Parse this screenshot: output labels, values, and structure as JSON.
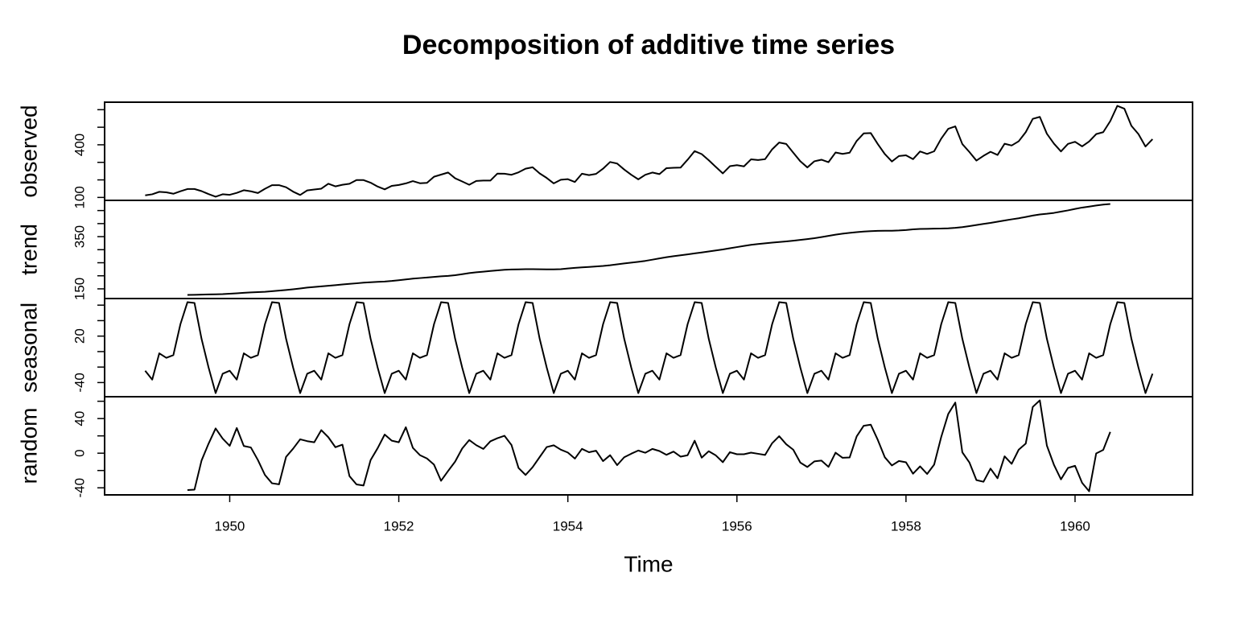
{
  "chart_data": {
    "type": "line",
    "title": "Decomposition of additive time series",
    "xlabel": "Time",
    "x": [
      1949,
      1949.0833,
      1949.1667,
      1949.25,
      1949.3333,
      1949.4167,
      1949.5,
      1949.5833,
      1949.6667,
      1949.75,
      1949.8333,
      1949.9167,
      1950,
      1950.0833,
      1950.1667,
      1950.25,
      1950.3333,
      1950.4167,
      1950.5,
      1950.5833,
      1950.6667,
      1950.75,
      1950.8333,
      1950.9167,
      1951,
      1951.0833,
      1951.1667,
      1951.25,
      1951.3333,
      1951.4167,
      1951.5,
      1951.5833,
      1951.6667,
      1951.75,
      1951.8333,
      1951.9167,
      1952,
      1952.0833,
      1952.1667,
      1952.25,
      1952.3333,
      1952.4167,
      1952.5,
      1952.5833,
      1952.6667,
      1952.75,
      1952.8333,
      1952.9167,
      1953,
      1953.0833,
      1953.1667,
      1953.25,
      1953.3333,
      1953.4167,
      1953.5,
      1953.5833,
      1953.6667,
      1953.75,
      1953.8333,
      1953.9167,
      1954,
      1954.0833,
      1954.1667,
      1954.25,
      1954.3333,
      1954.4167,
      1954.5,
      1954.5833,
      1954.6667,
      1954.75,
      1954.8333,
      1954.9167,
      1955,
      1955.0833,
      1955.1667,
      1955.25,
      1955.3333,
      1955.4167,
      1955.5,
      1955.5833,
      1955.6667,
      1955.75,
      1955.8333,
      1955.9167,
      1956,
      1956.0833,
      1956.1667,
      1956.25,
      1956.3333,
      1956.4167,
      1956.5,
      1956.5833,
      1956.6667,
      1956.75,
      1956.8333,
      1956.9167,
      1957,
      1957.0833,
      1957.1667,
      1957.25,
      1957.3333,
      1957.4167,
      1957.5,
      1957.5833,
      1957.6667,
      1957.75,
      1957.8333,
      1957.9167,
      1958,
      1958.0833,
      1958.1667,
      1958.25,
      1958.3333,
      1958.4167,
      1958.5,
      1958.5833,
      1958.6667,
      1958.75,
      1958.8333,
      1958.9167,
      1959,
      1959.0833,
      1959.1667,
      1959.25,
      1959.3333,
      1959.4167,
      1959.5,
      1959.5833,
      1959.6667,
      1959.75,
      1959.8333,
      1959.9167,
      1960,
      1960.0833,
      1960.1667,
      1960.25,
      1960.3333,
      1960.4167,
      1960.5,
      1960.5833,
      1960.6667,
      1960.75,
      1960.8333,
      1960.9167
    ],
    "xlim": [
      1948.52,
      1961.39
    ],
    "xticks": [
      1950,
      1952,
      1954,
      1956,
      1958,
      1960
    ],
    "color": "#000000",
    "series": [
      {
        "name": "observed",
        "ylim": [
          83.28,
          642.72
        ],
        "yticks": [
          100,
          400
        ],
        "yminor_ticks": [
          200,
          300,
          500,
          600
        ],
        "values": [
          112,
          118,
          132,
          129,
          121,
          135,
          148,
          148,
          136,
          119,
          104,
          118,
          115,
          126,
          141,
          135,
          125,
          149,
          170,
          170,
          158,
          133,
          114,
          140,
          145,
          150,
          178,
          163,
          172,
          178,
          199,
          199,
          184,
          162,
          146,
          166,
          171,
          180,
          193,
          181,
          183,
          218,
          230,
          242,
          209,
          191,
          172,
          194,
          196,
          196,
          236,
          235,
          229,
          243,
          264,
          272,
          237,
          211,
          180,
          201,
          204,
          188,
          235,
          227,
          234,
          264,
          302,
          293,
          259,
          229,
          203,
          229,
          242,
          233,
          267,
          269,
          270,
          315,
          364,
          347,
          312,
          274,
          237,
          278,
          284,
          277,
          317,
          313,
          318,
          374,
          413,
          405,
          355,
          306,
          271,
          306,
          315,
          301,
          356,
          348,
          355,
          422,
          465,
          467,
          404,
          347,
          305,
          336,
          340,
          318,
          362,
          348,
          363,
          435,
          491,
          505,
          404,
          359,
          310,
          337,
          360,
          342,
          406,
          396,
          420,
          472,
          548,
          559,
          463,
          407,
          362,
          405,
          417,
          391,
          419,
          461,
          472,
          535,
          622,
          606,
          508,
          461,
          390,
          432
        ]
      },
      {
        "name": "trend",
        "ylim": [
          112.86,
          488.97
        ],
        "yticks": [
          150,
          350
        ],
        "yminor_ticks": [
          200,
          250,
          300,
          400,
          450
        ],
        "values": [
          null,
          null,
          null,
          null,
          null,
          null,
          126.79,
          127.25,
          127.96,
          128.58,
          129.0,
          129.75,
          131.25,
          133.08,
          134.92,
          136.42,
          137.42,
          138.75,
          140.92,
          143.17,
          145.71,
          148.42,
          151.54,
          154.71,
          157.13,
          159.54,
          161.83,
          164.13,
          166.67,
          169.08,
          171.25,
          173.58,
          175.46,
          176.83,
          178.04,
          180.17,
          183.13,
          186.21,
          189.04,
          191.29,
          193.58,
          195.83,
          198.04,
          199.75,
          202.21,
          206.25,
          210.42,
          213.38,
          215.83,
          218.5,
          220.92,
          222.92,
          224.08,
          224.71,
          225.33,
          225.33,
          224.96,
          224.58,
          224.46,
          225.54,
          228.0,
          230.46,
          232.25,
          233.92,
          235.63,
          237.75,
          240.5,
          243.96,
          247.17,
          250.25,
          253.5,
          257.13,
          261.83,
          266.67,
          271.13,
          275.21,
          278.5,
          281.96,
          285.75,
          289.33,
          293.25,
          297.17,
          301.0,
          305.46,
          309.96,
          314.42,
          318.63,
          321.75,
          324.5,
          327.08,
          329.54,
          331.83,
          334.46,
          337.54,
          340.54,
          344.08,
          348.25,
          353.0,
          357.63,
          361.38,
          364.5,
          367.17,
          369.46,
          371.21,
          372.17,
          372.42,
          372.75,
          373.63,
          375.25,
          377.92,
          379.5,
          380.0,
          380.71,
          380.96,
          381.83,
          383.67,
          386.5,
          390.33,
          394.71,
          398.63,
          402.54,
          407.17,
          411.88,
          416.33,
          420.5,
          425.5,
          430.71,
          435.13,
          437.71,
          440.96,
          445.83,
          450.63,
          456.33,
          461.38,
          465.21,
          469.33,
          472.75,
          475.04,
          null,
          null,
          null,
          null,
          null,
          null
        ]
      },
      {
        "name": "seasonal",
        "ylim": [
          -58.29,
          68.53
        ],
        "yticks": [
          -40,
          20
        ],
        "yminor_ticks": [
          -20,
          0,
          40,
          60
        ],
        "values": [
          -24.75,
          -36.19,
          -2.24,
          -8.04,
          -4.51,
          35.4,
          63.83,
          62.82,
          16.52,
          -20.64,
          -53.59,
          -28.62,
          -24.75,
          -36.19,
          -2.24,
          -8.04,
          -4.51,
          35.4,
          63.83,
          62.82,
          16.52,
          -20.64,
          -53.59,
          -28.62,
          -24.75,
          -36.19,
          -2.24,
          -8.04,
          -4.51,
          35.4,
          63.83,
          62.82,
          16.52,
          -20.64,
          -53.59,
          -28.62,
          -24.75,
          -36.19,
          -2.24,
          -8.04,
          -4.51,
          35.4,
          63.83,
          62.82,
          16.52,
          -20.64,
          -53.59,
          -28.62,
          -24.75,
          -36.19,
          -2.24,
          -8.04,
          -4.51,
          35.4,
          63.83,
          62.82,
          16.52,
          -20.64,
          -53.59,
          -28.62,
          -24.75,
          -36.19,
          -2.24,
          -8.04,
          -4.51,
          35.4,
          63.83,
          62.82,
          16.52,
          -20.64,
          -53.59,
          -28.62,
          -24.75,
          -36.19,
          -2.24,
          -8.04,
          -4.51,
          35.4,
          63.83,
          62.82,
          16.52,
          -20.64,
          -53.59,
          -28.62,
          -24.75,
          -36.19,
          -2.24,
          -8.04,
          -4.51,
          35.4,
          63.83,
          62.82,
          16.52,
          -20.64,
          -53.59,
          -28.62,
          -24.75,
          -36.19,
          -2.24,
          -8.04,
          -4.51,
          35.4,
          63.83,
          62.82,
          16.52,
          -20.64,
          -53.59,
          -28.62,
          -24.75,
          -36.19,
          -2.24,
          -8.04,
          -4.51,
          35.4,
          63.83,
          62.82,
          16.52,
          -20.64,
          -53.59,
          -28.62,
          -24.75,
          -36.19,
          -2.24,
          -8.04,
          -4.51,
          35.4,
          63.83,
          62.82,
          16.52,
          -20.64,
          -53.59,
          -28.62,
          -24.75,
          -36.19,
          -2.24,
          -8.04,
          -4.51,
          35.4,
          63.83,
          62.82,
          16.52,
          -20.64,
          -53.59,
          -28.62
        ]
      },
      {
        "name": "random",
        "ylim": [
          -48.17,
          65.25
        ],
        "yticks": [
          -40,
          0,
          40
        ],
        "yminor_ticks": [
          -20,
          20,
          60
        ],
        "values": [
          null,
          null,
          null,
          null,
          null,
          null,
          -42.62,
          -42.07,
          -8.48,
          11.06,
          28.59,
          16.87,
          8.5,
          29.11,
          8.32,
          6.62,
          -7.91,
          -25.15,
          -34.75,
          -35.99,
          -4.23,
          5.22,
          16.05,
          13.91,
          12.62,
          26.65,
          18.41,
          6.91,
          9.84,
          -26.48,
          -36.08,
          -37.4,
          -7.98,
          5.81,
          21.55,
          14.45,
          12.62,
          29.98,
          6.2,
          -2.25,
          -6.07,
          -13.23,
          -31.87,
          -20.57,
          -9.73,
          5.39,
          15.17,
          9.24,
          4.92,
          13.69,
          17.32,
          20.12,
          9.43,
          -17.11,
          -25.16,
          -16.15,
          -4.48,
          7.06,
          9.13,
          4.08,
          0.75,
          -6.27,
          4.99,
          1.12,
          2.88,
          -9.15,
          -2.33,
          -13.78,
          -4.69,
          -0.61,
          3.09,
          0.49,
          4.92,
          2.52,
          -1.89,
          1.83,
          -3.99,
          -2.36,
          14.42,
          -5.15,
          2.23,
          -2.53,
          -10.41,
          1.16,
          -1.21,
          -1.23,
          0.61,
          -0.71,
          -1.99,
          11.52,
          19.63,
          10.35,
          4.02,
          -10.9,
          -15.95,
          -9.46,
          -8.5,
          -15.81,
          0.61,
          -5.34,
          -4.99,
          19.43,
          31.71,
          32.97,
          15.31,
          -4.78,
          -14.16,
          -9.01,
          -10.5,
          -23.73,
          -15.26,
          -23.96,
          -13.2,
          18.64,
          45.34,
          58.51,
          0.98,
          -10.69,
          -31.12,
          -33.01,
          -17.79,
          -28.98,
          -3.64,
          -12.29,
          4.01,
          11.1,
          53.46,
          61.05,
          8.77,
          -13.32,
          -30.24,
          -17.01,
          -14.58,
          -34.19,
          -43.97,
          -0.29,
          3.76,
          24.56,
          null,
          null,
          null,
          null,
          null,
          null
        ]
      }
    ]
  }
}
